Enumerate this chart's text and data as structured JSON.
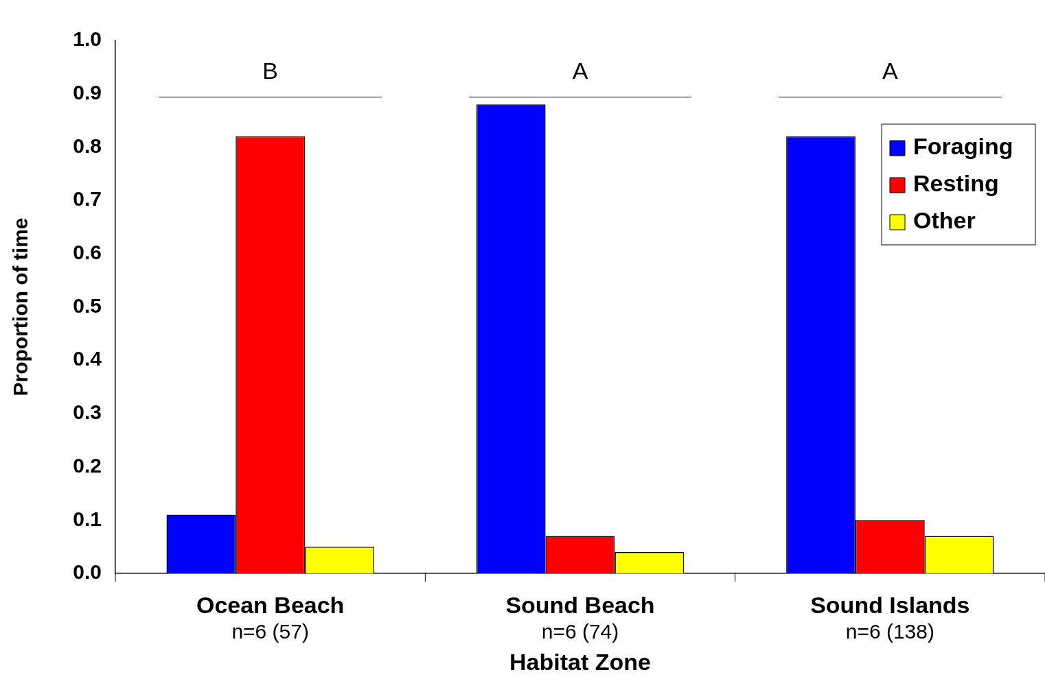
{
  "chart_data": {
    "type": "bar",
    "xlabel": "Habitat Zone",
    "ylabel": "Proportion of time",
    "categories": [
      "Ocean Beach",
      "Sound Beach",
      "Sound Islands"
    ],
    "series": [
      {
        "name": "Foraging",
        "color": "#0000ff",
        "values": [
          0.11,
          0.88,
          0.82
        ]
      },
      {
        "name": "Resting",
        "color": "#ff0000",
        "values": [
          0.82,
          0.07,
          0.1
        ]
      },
      {
        "name": "Other",
        "color": "#ffff00",
        "values": [
          0.05,
          0.04,
          0.07
        ]
      }
    ],
    "ylim": [
      0,
      1
    ],
    "yticks": [
      {
        "value": 0,
        "label": "0.0"
      },
      0.1,
      0.2,
      0.3,
      0.4,
      0.5,
      0.6,
      0.7,
      0.8,
      0.9,
      {
        "value": 1,
        "label": "1.0"
      }
    ],
    "grid": false,
    "legend": "top right",
    "annotations": [
      "n=6 (57)",
      "n=6 (74)",
      "n=6 (138)",
      "B",
      "A",
      "A"
    ]
  }
}
